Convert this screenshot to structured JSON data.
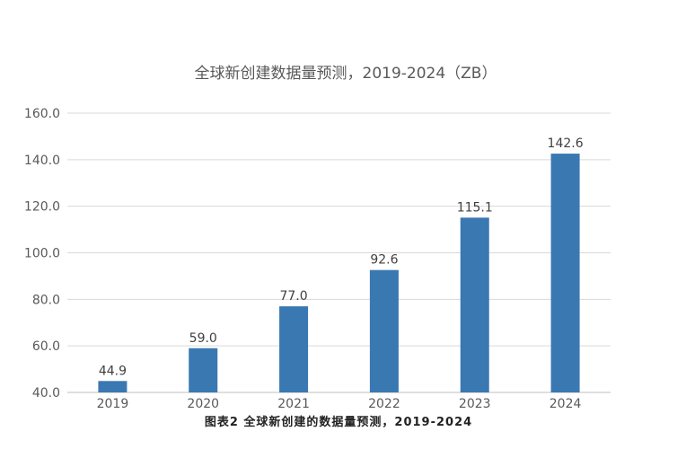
{
  "chart_data": {
    "type": "bar",
    "title": "全球新创建数据量预测，2019-2024（ZB）",
    "categories": [
      "2019",
      "2020",
      "2021",
      "2022",
      "2023",
      "2024"
    ],
    "values": [
      44.9,
      59.0,
      77.0,
      92.6,
      115.1,
      142.6
    ],
    "value_labels": [
      "44.9",
      "59.0",
      "77.0",
      "92.6",
      "115.1",
      "142.6"
    ],
    "ylim": [
      40,
      160
    ],
    "yticks": [
      "40.0",
      "60.0",
      "80.0",
      "100.0",
      "120.0",
      "140.0",
      "160.0"
    ],
    "grid": true,
    "bar_color": "#3a78b2"
  },
  "caption": "图表2 全球新创建的数据量预测，2019-2024"
}
